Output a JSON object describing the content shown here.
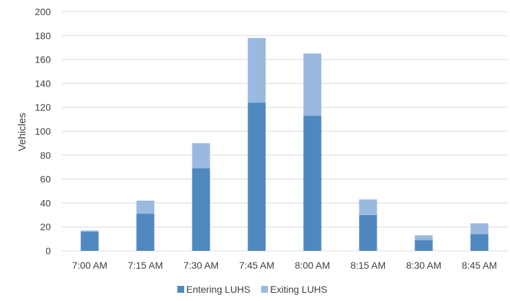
{
  "chart_data": {
    "type": "bar",
    "stacked": true,
    "categories": [
      "7:00 AM",
      "7:15 AM",
      "7:30 AM",
      "7:45 AM",
      "8:00 AM",
      "8:15 AM",
      "8:30 AM",
      "8:45 AM"
    ],
    "series": [
      {
        "name": "Entering LUHS",
        "color": "#4f88bf",
        "values": [
          16,
          31,
          69,
          124,
          113,
          30,
          9,
          14
        ]
      },
      {
        "name": "Exiting LUHS",
        "color": "#9ab9df",
        "values": [
          1,
          11,
          21,
          54,
          52,
          13,
          4,
          9
        ]
      }
    ],
    "ylabel": "Vehicles",
    "xlabel": "",
    "title": "",
    "ylim": [
      0,
      200
    ],
    "yticks": [
      0,
      20,
      40,
      60,
      80,
      100,
      120,
      140,
      160,
      180,
      200
    ],
    "grid": true,
    "legend_position": "bottom"
  }
}
